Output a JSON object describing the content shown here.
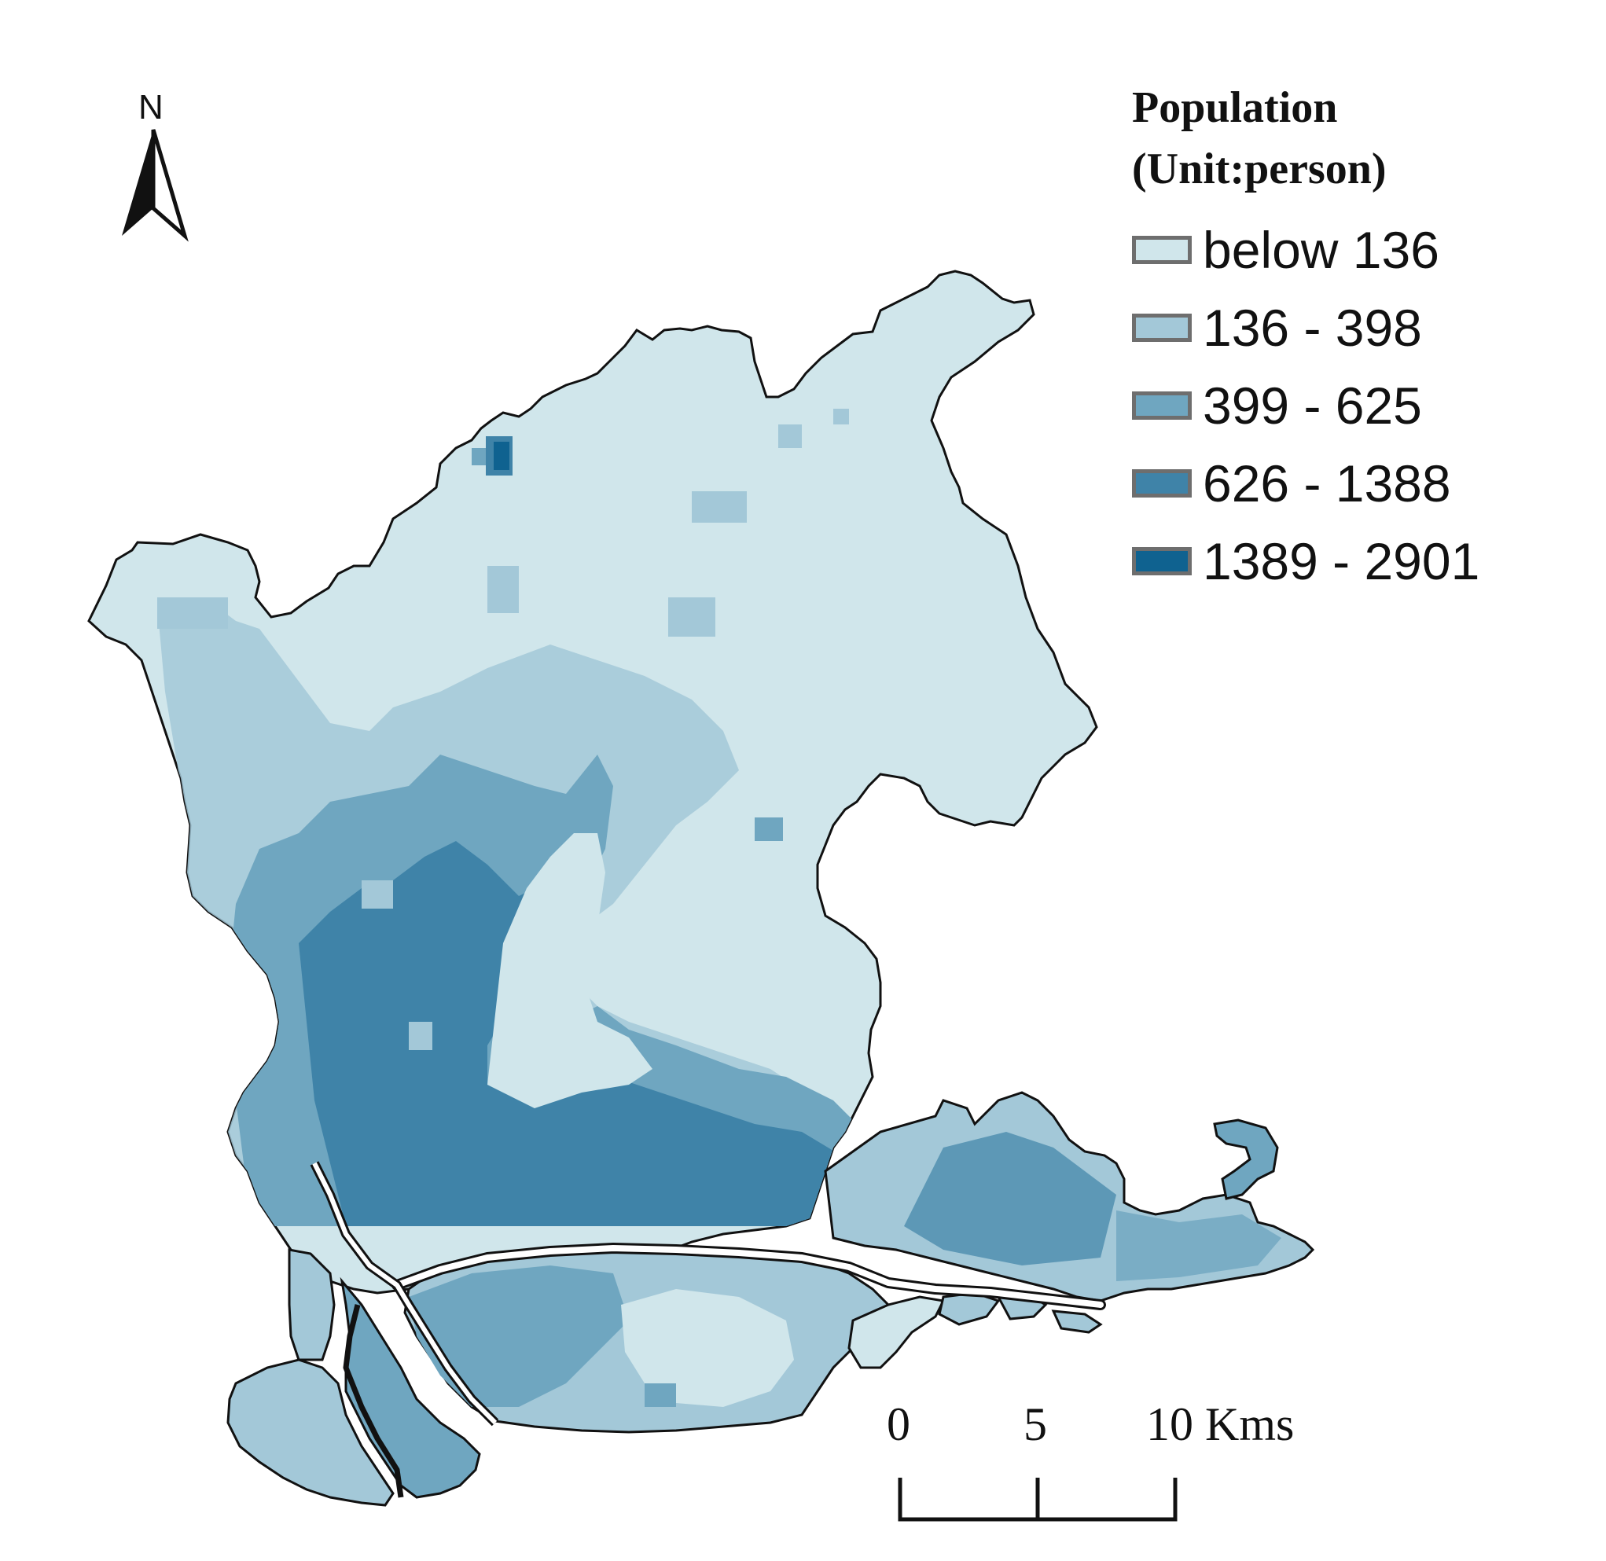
{
  "north_arrow": {
    "letter": "N",
    "icon": "north-arrow-icon"
  },
  "legend": {
    "title_line1": "Population",
    "title_line2": "(Unit:person)",
    "classes": [
      {
        "label": "below 136",
        "color": "#d0e6eb"
      },
      {
        "label": "136 - 398",
        "color": "#a3c8d8"
      },
      {
        "label": "399 - 625",
        "color": "#6fa6c0"
      },
      {
        "label": "626 - 1388",
        "color": "#3f83a8"
      },
      {
        "label": "1389 - 2901",
        "color": "#0f6290"
      }
    ]
  },
  "scale_bar": {
    "tick_0": "0",
    "tick_5": "5",
    "tick_10": "10 Kms"
  },
  "map": {
    "water_color": "#ffffff",
    "outline_color": "#111111"
  }
}
